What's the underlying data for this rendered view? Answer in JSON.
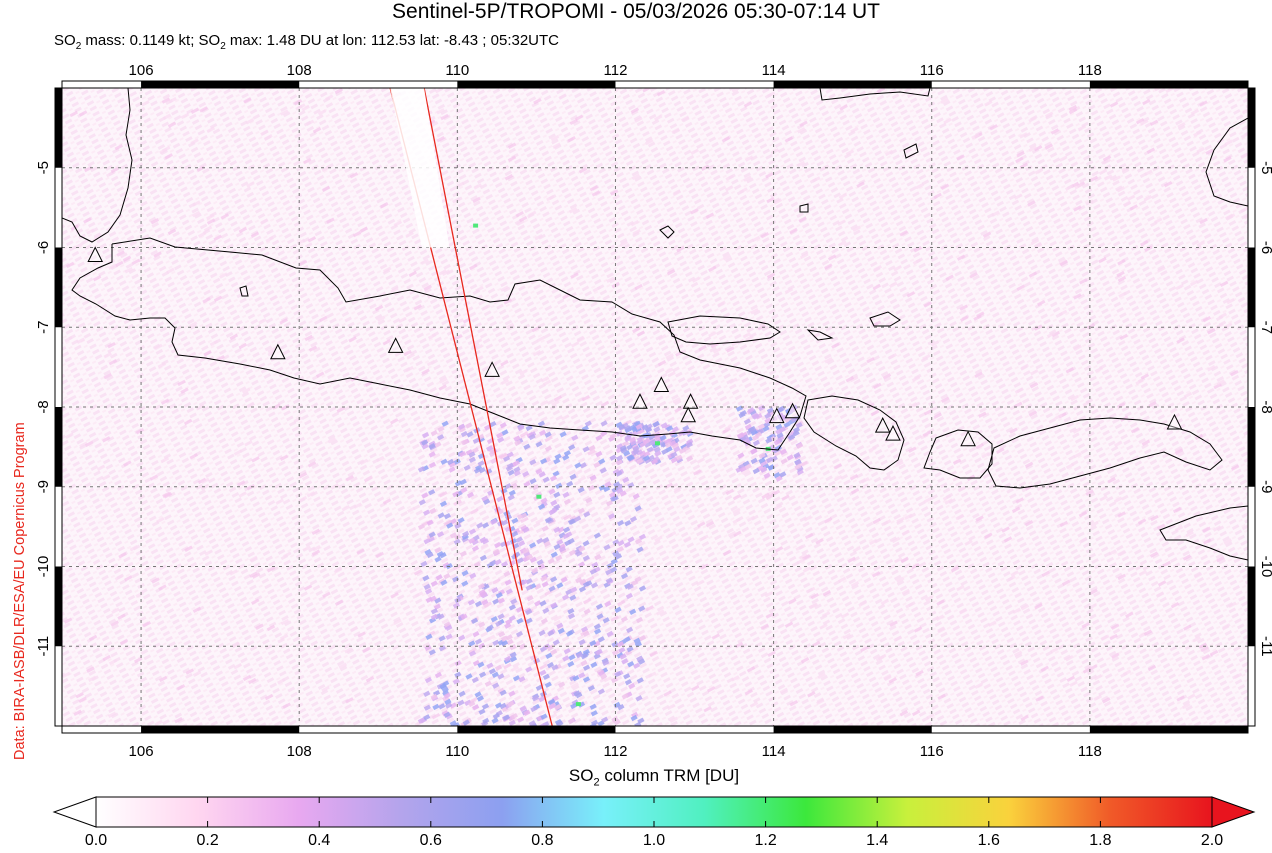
{
  "title": "Sentinel-5P/TROPOMI - 05/03/2026 05:30-07:14 UT",
  "subtitle": {
    "mass_label": "SO",
    "mass_sub": "2",
    "mass_text": " mass: 0.1149 kt; SO",
    "max_sub": "2",
    "max_text": " max: 1.48 DU at lon: 112.53 lat: -8.43 ; 05:32UTC"
  },
  "credit": "Data: BIRA-IASB/DLR/ESA/EU Copernicus Program",
  "map": {
    "lon_range": [
      105,
      120
    ],
    "lat_range": [
      -12,
      -4
    ],
    "lon_ticks": [
      "106",
      "108",
      "110",
      "112",
      "114",
      "116",
      "118"
    ],
    "lat_ticks": [
      "-5",
      "-6",
      "-7",
      "-8",
      "-9",
      "-10",
      "-11"
    ],
    "grid": "dotted",
    "volcanoes": [
      {
        "lon": 105.42,
        "lat": -6.1
      },
      {
        "lon": 107.73,
        "lat": -7.32
      },
      {
        "lon": 109.22,
        "lat": -7.24
      },
      {
        "lon": 110.44,
        "lat": -7.54
      },
      {
        "lon": 112.31,
        "lat": -7.94
      },
      {
        "lon": 112.58,
        "lat": -7.73
      },
      {
        "lon": 112.95,
        "lat": -7.94
      },
      {
        "lon": 112.92,
        "lat": -8.11
      },
      {
        "lon": 114.04,
        "lat": -8.12
      },
      {
        "lon": 114.24,
        "lat": -8.06
      },
      {
        "lon": 115.38,
        "lat": -8.24
      },
      {
        "lon": 115.51,
        "lat": -8.34
      },
      {
        "lon": 116.46,
        "lat": -8.41
      },
      {
        "lon": 119.07,
        "lat": -8.2
      }
    ],
    "swath_edges": [
      {
        "lon1": 109.15,
        "lat1": -4.0,
        "lon2": 111.2,
        "lat2": -12.0
      },
      {
        "lon1": 109.58,
        "lat1": -4.0,
        "lon2": 110.82,
        "lat2": -10.3
      }
    ],
    "swath_color": "#e8281e",
    "coast_color": "#000000"
  },
  "colorbar": {
    "title": "SO",
    "title_sub": "2",
    "title_rest": " column TRM [DU]",
    "ticks": [
      "0.0",
      "0.2",
      "0.4",
      "0.6",
      "0.8",
      "1.0",
      "1.2",
      "1.4",
      "1.6",
      "1.8",
      "2.0"
    ],
    "stops": [
      "#ffffff",
      "#ffd6f0",
      "#e8a8f0",
      "#b4a4ec",
      "#8ca0f0",
      "#78f0fa",
      "#50f0c0",
      "#3ce83c",
      "#c8f03c",
      "#fad23c",
      "#f05a28",
      "#e8141e"
    ]
  }
}
